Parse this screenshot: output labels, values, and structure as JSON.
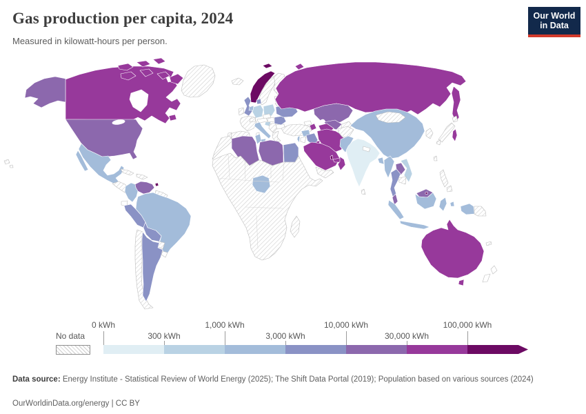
{
  "header": {
    "title": "Gas production per capita, 2024",
    "subtitle": "Measured in kilowatt-hours per person.",
    "logo_line1": "Our World",
    "logo_line2": "in Data",
    "logo_bg": "#12294b",
    "logo_accent": "#d23a2c"
  },
  "legend": {
    "no_data_label": "No data",
    "bins": [
      {
        "label": "0 kWh",
        "row": "top",
        "color": "#e0eef4"
      },
      {
        "label": "300 kWh",
        "row": "bottom",
        "color": "#b9d2e4"
      },
      {
        "label": "1,000 kWh",
        "row": "top",
        "color": "#a3bcda"
      },
      {
        "label": "3,000 kWh",
        "row": "bottom",
        "color": "#8a92c5"
      },
      {
        "label": "10,000 kWh",
        "row": "top",
        "color": "#8c68ad"
      },
      {
        "label": "30,000 kWh",
        "row": "bottom",
        "color": "#97399b"
      },
      {
        "label": "100,000 kWh",
        "row": "top",
        "color": "#6c0a63"
      }
    ]
  },
  "footer": {
    "source_label": "Data source:",
    "source_text": " Energy Institute - Statistical Review of World Energy (2025); The Shift Data Portal (2019); Population based on various sources (2024)",
    "link_text": "OurWorldinData.org/energy | CC BY"
  },
  "map": {
    "country_border": "#ffffff",
    "muted_border": "#bdbdbd",
    "hatch_line": "#d2d2d2",
    "countries": {
      "greenland": "no_data",
      "canada": "bin6",
      "united-states": "bin5",
      "mexico": "bin3",
      "central-america": "no_data",
      "cuba": "no_data",
      "hispaniola": "no_data",
      "hawaii": "no_data",
      "venezuela": "bin5",
      "trinidad-and-tobago": "bin7",
      "colombia": "bin3",
      "guyanas": "no_data",
      "ecuador": "zero",
      "peru": "bin4",
      "brazil": "bin3",
      "bolivia": "bin4",
      "paraguay": "no_data",
      "chile": "no_data",
      "argentina": "bin4",
      "uruguay": "zero",
      "iceland": "no_data",
      "norway": "bin7",
      "sweden": "no_data",
      "finland": "no_data",
      "baltic-states": "zero",
      "belarus": "zero",
      "united-kingdom": "bin4",
      "ireland": "no_data",
      "france": "no_data",
      "spain": "no_data",
      "portugal": "no_data",
      "germany": "bin2",
      "netherlands": "bin3",
      "denmark": "bin4",
      "poland": "bin2",
      "czechia": "zero",
      "austria": "zero",
      "switzerland": "no_data",
      "italy": "bin3",
      "sardinia": "zero",
      "croatia": "bin2",
      "balkans": "no_data",
      "greece": "no_data",
      "bulgaria": "zero",
      "hungary": "zero",
      "romania": "bin4",
      "ukraine": "bin4",
      "russia": "bin6",
      "kazakhstan": "bin5",
      "azerbaijan": "bin6",
      "georgia": "zero",
      "armenia": "zero",
      "turkmenistan": "bin6",
      "uzbekistan": "bin5",
      "kyrgyzstan-tajikistan": "no_data",
      "turkey": "no_data",
      "syria": "bin3",
      "israel": "bin3",
      "jordan": "zero",
      "iraq": "bin4",
      "iran": "bin6",
      "afghanistan": "no_data",
      "saudi-arabia": "bin6",
      "kuwait": "bin6",
      "qatar": "bin7",
      "united-arab-emirates": "bin6",
      "oman": "bin6",
      "yemen": "no_data",
      "morocco": "no_data",
      "algeria": "bin5",
      "tunisia": "bin3",
      "libya": "bin5",
      "egypt": "bin4",
      "sub-saharan-africa": "no_data",
      "nigeria": "bin3",
      "madagascar": "no_data",
      "pakistan": "bin3",
      "india": "bin1",
      "nepal": "zero",
      "sri-lanka": "no_data",
      "bangladesh": "bin3",
      "china": "bin3",
      "mongolia": "no_data",
      "south-korea": "no_data",
      "japan": "no_data",
      "taiwan": "no_data",
      "myanmar": "bin3",
      "thailand": "bin4",
      "laos": "bin5",
      "vietnam": "bin2",
      "cambodia": "no_data",
      "malaysia": "bin5",
      "brunei": "bin7",
      "indonesia": "bin3",
      "papua-new-guinea": "no_data",
      "philippines": "no_data",
      "australia": "bin6",
      "new-zealand": "zero",
      "new-caledonia": "no_data"
    }
  },
  "chart_data": {
    "type": "choropleth",
    "title": "Gas production per capita, 2024",
    "unit": "kilowatt-hours per person",
    "bin_thresholds_kwh": [
      0,
      300,
      1000,
      3000,
      10000,
      30000,
      100000
    ],
    "legend_colors": [
      "#e0eef4",
      "#b9d2e4",
      "#a3bcda",
      "#8a92c5",
      "#8c68ad",
      "#97399b",
      "#6c0a63"
    ],
    "no_data_style": "diagonal hatch",
    "countries_by_range": {
      "0 kWh": [
        "Ecuador",
        "Uruguay",
        "Belarus",
        "Czechia",
        "Austria",
        "Hungary",
        "Bulgaria",
        "Georgia",
        "Armenia",
        "Jordan",
        "Nepal",
        "New Zealand"
      ],
      "0-300 kWh": [
        "India"
      ],
      "300-1,000 kWh": [
        "Germany",
        "Poland",
        "Croatia",
        "Vietnam"
      ],
      "1,000-3,000 kWh": [
        "Mexico",
        "Colombia",
        "Brazil",
        "Netherlands",
        "Italy",
        "Tunisia",
        "Nigeria",
        "Syria",
        "Israel",
        "Pakistan",
        "Bangladesh",
        "China",
        "Myanmar",
        "Indonesia"
      ],
      "3,000-10,000 kWh": [
        "Peru",
        "Bolivia",
        "Argentina",
        "United Kingdom",
        "Denmark",
        "Ukraine",
        "Romania",
        "Iraq",
        "Egypt",
        "Thailand"
      ],
      "10,000-30,000 kWh": [
        "United States",
        "Venezuela",
        "Algeria",
        "Libya",
        "Kazakhstan",
        "Uzbekistan",
        "Malaysia",
        "Laos"
      ],
      "30,000-100,000 kWh": [
        "Canada",
        "Russia",
        "Turkmenistan",
        "Azerbaijan",
        "Iran",
        "Saudi Arabia",
        "Kuwait",
        "United Arab Emirates",
        "Oman",
        "Australia"
      ],
      "over 100,000 kWh": [
        "Norway",
        "Trinidad and Tobago",
        "Qatar",
        "Brunei"
      ],
      "No data": [
        "Greenland",
        "Central America",
        "Cuba",
        "Chile",
        "Paraguay",
        "Iceland",
        "Ireland",
        "France",
        "Spain",
        "Portugal",
        "Sweden",
        "Finland",
        "Switzerland",
        "Greece",
        "Turkey",
        "Morocco",
        "Sub-Saharan Africa",
        "Madagascar",
        "Yemen",
        "Afghanistan",
        "Mongolia",
        "Japan",
        "South Korea",
        "Taiwan",
        "Philippines",
        "Cambodia",
        "Papua New Guinea",
        "Sri Lanka"
      ]
    }
  }
}
